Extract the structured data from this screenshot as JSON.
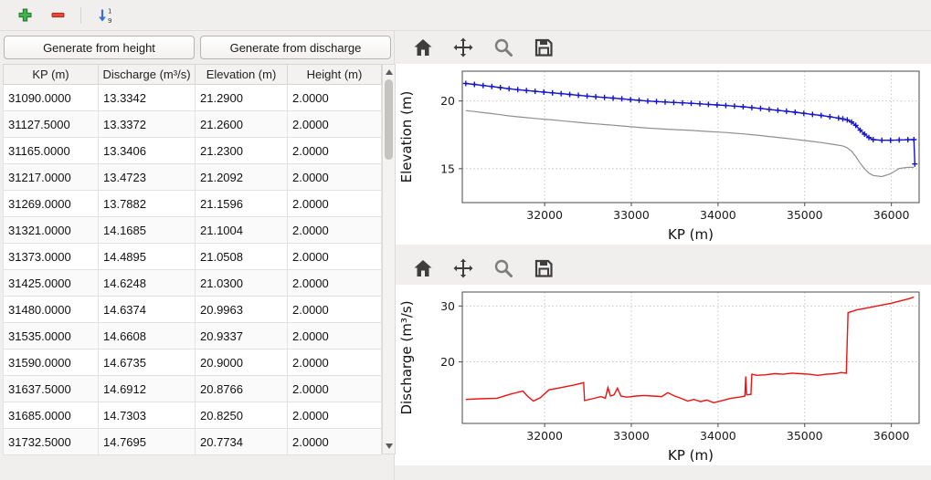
{
  "window": {
    "background": "#f0efee"
  },
  "main_toolbar": {
    "icons": [
      "add-icon",
      "remove-icon",
      "sort-ascending-icon"
    ]
  },
  "buttons": {
    "generate_from_height": "Generate from height",
    "generate_from_discharge": "Generate from discharge"
  },
  "table": {
    "columns": [
      "KP (m)",
      "Discharge (m³/s)",
      "Elevation (m)",
      "Height (m)"
    ],
    "rows": [
      [
        "31090.0000",
        "13.3342",
        "21.2900",
        "2.0000"
      ],
      [
        "31127.5000",
        "13.3372",
        "21.2600",
        "2.0000"
      ],
      [
        "31165.0000",
        "13.3406",
        "21.2300",
        "2.0000"
      ],
      [
        "31217.0000",
        "13.4723",
        "21.2092",
        "2.0000"
      ],
      [
        "31269.0000",
        "13.7882",
        "21.1596",
        "2.0000"
      ],
      [
        "31321.0000",
        "14.1685",
        "21.1004",
        "2.0000"
      ],
      [
        "31373.0000",
        "14.4895",
        "21.0508",
        "2.0000"
      ],
      [
        "31425.0000",
        "14.6248",
        "21.0300",
        "2.0000"
      ],
      [
        "31480.0000",
        "14.6374",
        "20.9963",
        "2.0000"
      ],
      [
        "31535.0000",
        "14.6608",
        "20.9337",
        "2.0000"
      ],
      [
        "31590.0000",
        "14.6735",
        "20.9000",
        "2.0000"
      ],
      [
        "31637.5000",
        "14.6912",
        "20.8766",
        "2.0000"
      ],
      [
        "31685.0000",
        "14.7303",
        "20.8250",
        "2.0000"
      ],
      [
        "31732.5000",
        "14.7695",
        "20.7734",
        "2.0000"
      ]
    ]
  },
  "chart_toolbar": {
    "icons": [
      "home-icon",
      "pan-icon",
      "zoom-icon",
      "save-icon"
    ]
  },
  "chart_data": [
    {
      "type": "line",
      "title": "",
      "xlabel": "KP (m)",
      "ylabel": "Elevation (m)",
      "xlim": [
        31050,
        36320
      ],
      "ylim": [
        12.5,
        22.2
      ],
      "xticks": [
        32000,
        33000,
        34000,
        35000,
        36000
      ],
      "yticks": [
        15,
        20
      ],
      "grid": true,
      "legend": "none",
      "series": [
        {
          "name": "water-elevation",
          "color": "#1515cc",
          "marker": "+",
          "width": 1.4,
          "x": [
            31090,
            31190,
            31290,
            31390,
            31490,
            31590,
            31690,
            31790,
            31890,
            31990,
            32090,
            32190,
            32290,
            32390,
            32490,
            32590,
            32690,
            32790,
            32890,
            32990,
            33090,
            33190,
            33290,
            33390,
            33490,
            33590,
            33690,
            33790,
            33890,
            33990,
            34090,
            34190,
            34290,
            34390,
            34490,
            34590,
            34690,
            34790,
            34890,
            34990,
            35090,
            35190,
            35290,
            35390,
            35440,
            35490,
            35540,
            35590,
            35640,
            35690,
            35740,
            35790,
            35890,
            35990,
            36090,
            36190,
            36260,
            36270
          ],
          "y": [
            21.29,
            21.22,
            21.14,
            21.07,
            20.99,
            20.9,
            20.83,
            20.77,
            20.71,
            20.66,
            20.6,
            20.54,
            20.48,
            20.42,
            20.36,
            20.31,
            20.26,
            20.21,
            20.16,
            20.1,
            20.05,
            20.0,
            19.96,
            19.92,
            19.89,
            19.86,
            19.83,
            19.79,
            19.75,
            19.71,
            19.67,
            19.62,
            19.57,
            19.51,
            19.45,
            19.38,
            19.31,
            19.24,
            19.17,
            19.09,
            19.01,
            18.93,
            18.84,
            18.74,
            18.68,
            18.6,
            18.45,
            18.2,
            17.85,
            17.55,
            17.3,
            17.15,
            17.1,
            17.1,
            17.12,
            17.14,
            17.15,
            15.35
          ]
        },
        {
          "name": "bed-elevation",
          "color": "#909090",
          "marker": null,
          "width": 1.2,
          "x": [
            31090,
            31190,
            31290,
            31390,
            31490,
            31590,
            31690,
            31790,
            31890,
            31990,
            32090,
            32190,
            32290,
            32390,
            32490,
            32590,
            32690,
            32790,
            32890,
            32990,
            33090,
            33190,
            33290,
            33390,
            33490,
            33590,
            33690,
            33790,
            33890,
            33990,
            34090,
            34190,
            34290,
            34390,
            34490,
            34590,
            34690,
            34790,
            34890,
            34990,
            35090,
            35190,
            35290,
            35390,
            35440,
            35490,
            35540,
            35590,
            35640,
            35690,
            35740,
            35790,
            35890,
            35990,
            36090,
            36190,
            36260
          ],
          "y": [
            19.29,
            19.22,
            19.14,
            19.07,
            18.99,
            18.9,
            18.83,
            18.77,
            18.71,
            18.66,
            18.6,
            18.54,
            18.48,
            18.42,
            18.36,
            18.31,
            18.26,
            18.21,
            18.16,
            18.1,
            18.05,
            18.0,
            17.96,
            17.92,
            17.89,
            17.86,
            17.83,
            17.79,
            17.75,
            17.71,
            17.67,
            17.62,
            17.57,
            17.51,
            17.45,
            17.38,
            17.31,
            17.24,
            17.17,
            17.09,
            17.01,
            16.93,
            16.84,
            16.74,
            16.68,
            16.55,
            16.3,
            15.9,
            15.4,
            15.0,
            14.68,
            14.5,
            14.42,
            14.62,
            15.02,
            15.1,
            15.1
          ]
        }
      ]
    },
    {
      "type": "line",
      "title": "",
      "xlabel": "KP (m)",
      "ylabel": "Discharge (m³/s)",
      "xlim": [
        31050,
        36320
      ],
      "ylim": [
        9.0,
        32.5
      ],
      "xticks": [
        32000,
        33000,
        34000,
        35000,
        36000
      ],
      "yticks": [
        20,
        30
      ],
      "grid": true,
      "legend": "none",
      "series": [
        {
          "name": "discharge",
          "color": "#ee1111",
          "marker": null,
          "width": 1.4,
          "x": [
            31090,
            31250,
            31450,
            31600,
            31750,
            31800,
            31870,
            31950,
            32050,
            32150,
            32250,
            32350,
            32450,
            32460,
            32550,
            32650,
            32700,
            32730,
            32760,
            32800,
            32840,
            32880,
            32950,
            33050,
            33150,
            33250,
            33350,
            33420,
            33500,
            33570,
            33650,
            33720,
            33800,
            33870,
            33950,
            34050,
            34150,
            34250,
            34310,
            34320,
            34330,
            34380,
            34390,
            34450,
            34550,
            34650,
            34750,
            34850,
            34950,
            35050,
            35150,
            35250,
            35350,
            35420,
            35480,
            35500,
            35600,
            35700,
            35800,
            35900,
            36000,
            36100,
            36200,
            36260
          ],
          "y": [
            13.3,
            13.4,
            13.5,
            14.2,
            14.8,
            13.9,
            13.0,
            13.6,
            15.0,
            15.3,
            15.6,
            15.9,
            16.3,
            13.1,
            13.4,
            13.8,
            13.5,
            15.4,
            13.9,
            14.1,
            15.3,
            13.9,
            13.7,
            13.9,
            14.0,
            13.9,
            13.8,
            14.5,
            13.9,
            13.5,
            13.0,
            13.3,
            12.9,
            13.2,
            12.7,
            13.1,
            13.5,
            13.7,
            13.9,
            17.4,
            14.1,
            14.2,
            17.8,
            17.6,
            17.7,
            17.9,
            17.8,
            18.0,
            17.9,
            17.8,
            17.6,
            17.8,
            17.9,
            18.1,
            18.0,
            28.8,
            29.3,
            29.6,
            29.9,
            30.2,
            30.5,
            30.9,
            31.3,
            31.6
          ]
        }
      ]
    }
  ]
}
